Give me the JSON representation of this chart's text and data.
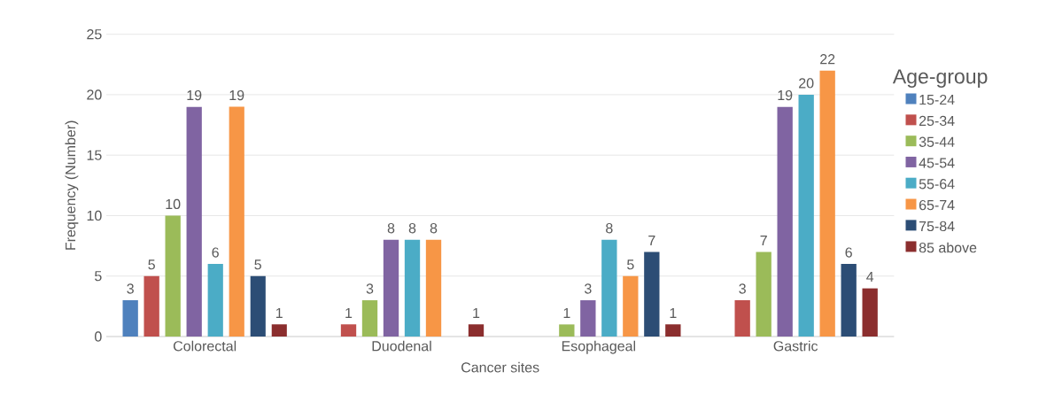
{
  "chart_data": {
    "type": "bar",
    "xlabel": "Cancer sites",
    "ylabel": "Frequency (Number)",
    "legend_title": "Age-group",
    "categories": [
      "Colorectal",
      "Duodenal",
      "Esophageal",
      "Gastric"
    ],
    "series": [
      {
        "name": "15-24",
        "color": "#4f81bd",
        "values": [
          3,
          null,
          null,
          null
        ]
      },
      {
        "name": "25-34",
        "color": "#c0504d",
        "values": [
          5,
          1,
          null,
          3
        ]
      },
      {
        "name": "35-44",
        "color": "#9bbb59",
        "values": [
          10,
          3,
          1,
          7
        ]
      },
      {
        "name": "45-54",
        "color": "#8064a2",
        "values": [
          19,
          8,
          3,
          19
        ]
      },
      {
        "name": "55-64",
        "color": "#4bacc6",
        "values": [
          6,
          8,
          8,
          20
        ]
      },
      {
        "name": "65-74",
        "color": "#f79646",
        "values": [
          19,
          8,
          5,
          22
        ]
      },
      {
        "name": "75-84",
        "color": "#2c4d75",
        "values": [
          5,
          null,
          7,
          6
        ]
      },
      {
        "name": "85 above",
        "color": "#8b2e2e",
        "values": [
          1,
          1,
          1,
          4
        ]
      }
    ],
    "ylim": [
      0,
      25
    ],
    "yticks": [
      0,
      5,
      10,
      15,
      20,
      25
    ],
    "grid": "y",
    "legend": "right",
    "data_labels": true
  }
}
